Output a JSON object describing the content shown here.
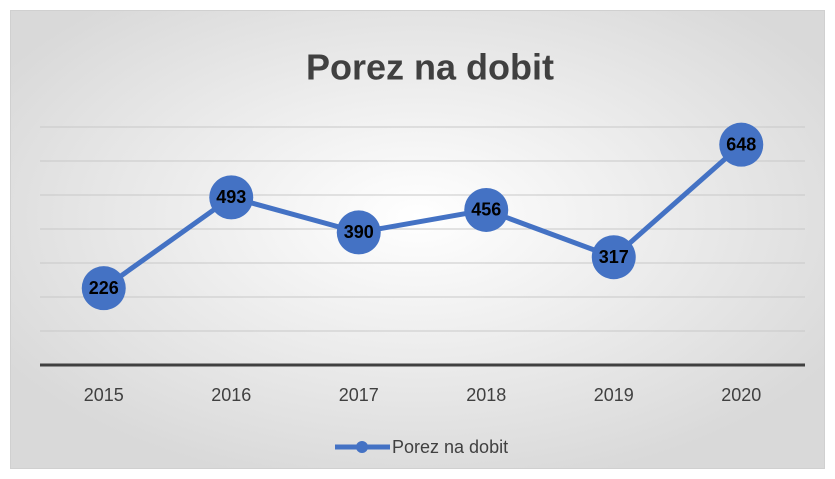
{
  "chart_data": {
    "type": "line",
    "title": "Porez na dobit",
    "categories": [
      "2015",
      "2016",
      "2017",
      "2018",
      "2019",
      "2020"
    ],
    "series": [
      {
        "name": "Porez na dobit",
        "color": "#4472c4",
        "values": [
          226,
          493,
          390,
          456,
          317,
          648
        ]
      }
    ],
    "ylim": [
      0,
      700
    ],
    "yticks": [
      0,
      100,
      200,
      300,
      400,
      500,
      600,
      700
    ],
    "grid": true,
    "legend": "bottom"
  }
}
